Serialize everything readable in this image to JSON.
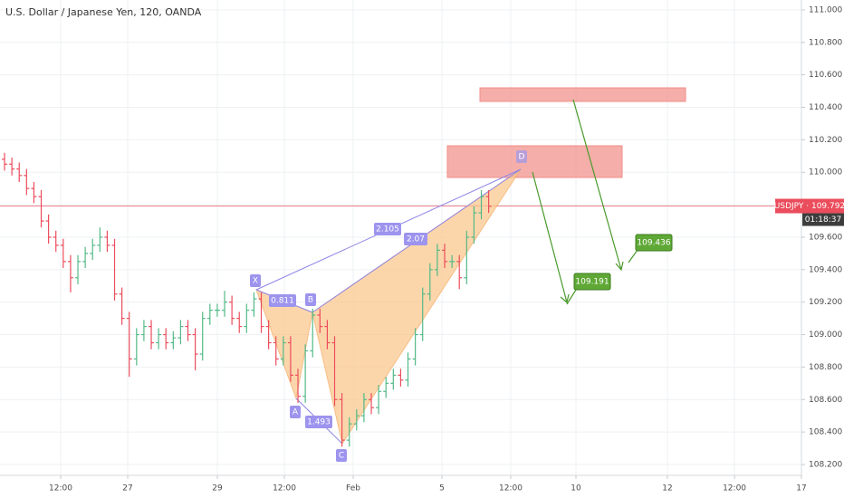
{
  "chart_data": {
    "type": "candlestick",
    "title": "U.S. Dollar / Japanese Yen, 120, OANDA",
    "up_color": "#53b987",
    "down_color": "#eb4d5c",
    "grid": true,
    "x": [
      0,
      1,
      2,
      3,
      4,
      5,
      6,
      7,
      8,
      9,
      10,
      11,
      12,
      13,
      14,
      15,
      16,
      17,
      18,
      19,
      20,
      21,
      22,
      23,
      24,
      25,
      26,
      27,
      28,
      29,
      30,
      31,
      32,
      33,
      34,
      35,
      36,
      37,
      38,
      39,
      40,
      41,
      42,
      43,
      44,
      45,
      46,
      47,
      48,
      49,
      50,
      51,
      52,
      53,
      54,
      55,
      56,
      57,
      58,
      59,
      60,
      61,
      62,
      63,
      64,
      65,
      66
    ],
    "open": [
      110.08,
      110.05,
      110.02,
      109.98,
      109.9,
      109.85,
      109.7,
      109.6,
      109.55,
      109.45,
      109.35,
      109.45,
      109.5,
      109.55,
      109.6,
      109.55,
      109.25,
      109.1,
      108.85,
      109.0,
      109.05,
      108.95,
      109.0,
      108.95,
      108.98,
      109.05,
      109.0,
      108.88,
      109.1,
      109.15,
      109.15,
      109.2,
      109.1,
      109.05,
      109.15,
      109.22,
      109.05,
      108.95,
      108.85,
      108.95,
      108.75,
      108.62,
      108.9,
      109.12,
      109.05,
      108.95,
      108.6,
      108.35,
      108.45,
      108.5,
      108.6,
      108.55,
      108.65,
      108.7,
      108.75,
      108.72,
      108.85,
      109.0,
      109.25,
      109.4,
      109.52,
      109.45,
      109.45,
      109.35,
      109.6,
      109.75,
      109.85
    ],
    "high": [
      110.12,
      110.09,
      110.06,
      110.02,
      109.94,
      109.89,
      109.74,
      109.64,
      109.59,
      109.49,
      109.49,
      109.54,
      109.59,
      109.66,
      109.64,
      109.59,
      109.29,
      109.14,
      109.04,
      109.09,
      109.09,
      109.04,
      109.04,
      109.02,
      109.09,
      109.09,
      109.04,
      109.14,
      109.19,
      109.19,
      109.27,
      109.24,
      109.14,
      109.19,
      109.26,
      109.26,
      109.09,
      108.99,
      108.99,
      108.99,
      108.79,
      108.94,
      109.16,
      109.16,
      109.09,
      108.99,
      108.64,
      108.49,
      108.54,
      108.64,
      108.64,
      108.69,
      108.74,
      108.79,
      108.79,
      108.89,
      109.04,
      109.29,
      109.44,
      109.56,
      109.56,
      109.49,
      109.49,
      109.64,
      109.79,
      109.89,
      109.89
    ],
    "low": [
      110.01,
      109.98,
      109.94,
      109.86,
      109.81,
      109.66,
      109.56,
      109.51,
      109.41,
      109.26,
      109.31,
      109.41,
      109.46,
      109.51,
      109.51,
      109.21,
      109.06,
      108.74,
      108.81,
      108.96,
      108.91,
      108.91,
      108.91,
      108.91,
      108.94,
      108.96,
      108.78,
      108.84,
      109.06,
      109.11,
      109.11,
      109.06,
      109.01,
      109.01,
      109.11,
      109.01,
      108.91,
      108.81,
      108.81,
      108.71,
      108.58,
      108.58,
      108.86,
      109.01,
      108.91,
      108.56,
      108.31,
      108.31,
      108.41,
      108.46,
      108.51,
      108.51,
      108.61,
      108.66,
      108.68,
      108.68,
      108.81,
      108.96,
      109.21,
      109.36,
      109.41,
      109.41,
      109.28,
      109.31,
      109.56,
      109.71,
      109.75
    ],
    "close": [
      110.05,
      110.02,
      109.98,
      109.9,
      109.85,
      109.7,
      109.6,
      109.55,
      109.45,
      109.35,
      109.45,
      109.5,
      109.55,
      109.6,
      109.55,
      109.25,
      109.1,
      108.85,
      109.0,
      109.05,
      108.95,
      109.0,
      108.95,
      108.98,
      109.05,
      109.0,
      108.88,
      109.1,
      109.15,
      109.15,
      109.2,
      109.1,
      109.05,
      109.15,
      109.22,
      109.05,
      108.95,
      108.85,
      108.95,
      108.75,
      108.62,
      108.9,
      109.12,
      109.05,
      108.95,
      108.6,
      108.35,
      108.45,
      108.5,
      108.6,
      108.55,
      108.65,
      108.7,
      108.75,
      108.72,
      108.85,
      109.0,
      109.25,
      109.4,
      109.52,
      109.45,
      109.45,
      109.35,
      109.6,
      109.75,
      109.85,
      109.79
    ],
    "xlim": [
      -0.62,
      108.64
    ],
    "xticks": [
      {
        "value": 7.65,
        "label": "12:00"
      },
      {
        "value": 16.79,
        "label": "27"
      },
      {
        "value": 29.01,
        "label": "29"
      },
      {
        "value": 38.15,
        "label": "12:00"
      },
      {
        "value": 47.53,
        "label": "Feb"
      },
      {
        "value": 59.63,
        "label": "5"
      },
      {
        "value": 69.01,
        "label": "12:00"
      },
      {
        "value": 77.9,
        "label": "10"
      },
      {
        "value": 90.37,
        "label": "12"
      },
      {
        "value": 99.51,
        "label": "12:00"
      },
      {
        "value": 108.64,
        "label": "17"
      }
    ],
    "ylim": [
      108.133,
      111.061
    ],
    "yticks": [
      {
        "value": 108.2,
        "label": "108.200"
      },
      {
        "value": 108.4,
        "label": "108.400"
      },
      {
        "value": 108.6,
        "label": "108.600"
      },
      {
        "value": 108.8,
        "label": "108.800"
      },
      {
        "value": 109.0,
        "label": "109.000"
      },
      {
        "value": 109.2,
        "label": "109.200"
      },
      {
        "value": 109.4,
        "label": "109.400"
      },
      {
        "value": 109.6,
        "label": "109.600"
      },
      {
        "value": 109.8,
        "label": "109.800"
      },
      {
        "value": 110.0,
        "label": "110.000"
      },
      {
        "value": 110.2,
        "label": "110.200"
      },
      {
        "value": 110.4,
        "label": "110.400"
      },
      {
        "value": 110.6,
        "label": "110.600"
      },
      {
        "value": 110.8,
        "label": "110.800"
      },
      {
        "value": 111.0,
        "label": "111.000"
      }
    ],
    "last_price": 109.792,
    "last_price_label": "USDJPY · 109.792",
    "countdown": "01:18:37",
    "pattern_points": [
      "X",
      "A",
      "B",
      "C",
      "D"
    ],
    "ratios": [
      0.811,
      1.493,
      2.105,
      2.07
    ],
    "targets": [
      109.191,
      109.436
    ]
  }
}
